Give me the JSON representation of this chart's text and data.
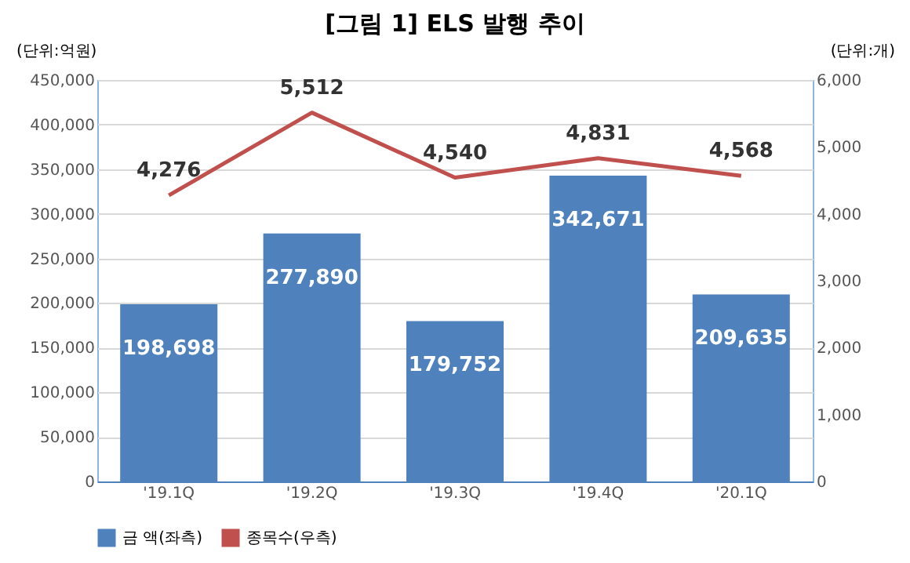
{
  "chart_data": {
    "type": "bar",
    "title": "[그림 1] ELS 발행 추이",
    "ylabel": "(단위:억원)",
    "y2label": "(단위:개)",
    "categories": [
      "'19.1Q",
      "'19.2Q",
      "'19.3Q",
      "'19.4Q",
      "'20.1Q"
    ],
    "series": [
      {
        "name": "금 액(좌측)",
        "color": "#4f81bd",
        "values": [
          198698,
          277890,
          179752,
          342671,
          209635
        ],
        "value_labels": [
          "198,698",
          "277,890",
          "179,752",
          "342,671",
          "209,635"
        ]
      },
      {
        "name": "종목수(우측)",
        "color": "#c0504d",
        "type": "line",
        "axis": "y2",
        "values": [
          4276,
          5512,
          4540,
          4831,
          4568
        ],
        "value_labels": [
          "4,276",
          "5,512",
          "4,540",
          "4,831",
          "4,568"
        ]
      }
    ],
    "ylim": [
      0,
      450000
    ],
    "yticks": [
      0,
      {
        "value": 50000,
        "label": "50,000"
      },
      {
        "value": 100000,
        "label": "100,000"
      },
      {
        "value": 150000,
        "label": "150,000"
      },
      {
        "value": 200000,
        "label": "200,000"
      },
      {
        "value": 250000,
        "label": "250,000"
      },
      {
        "value": 300000,
        "label": "300,000"
      },
      {
        "value": 350000,
        "label": "350,000"
      },
      {
        "value": 400000,
        "label": "400,000"
      },
      {
        "value": 450000,
        "label": "450,000"
      }
    ],
    "y2lim": [
      0,
      6000
    ],
    "y2ticks": [
      0,
      {
        "value": 1000,
        "label": "1,000"
      },
      {
        "value": 2000,
        "label": "2,000"
      },
      {
        "value": 3000,
        "label": "3,000"
      },
      {
        "value": 4000,
        "label": "4,000"
      },
      {
        "value": 5000,
        "label": "5,000"
      },
      {
        "value": 6000,
        "label": "6,000"
      }
    ],
    "grid": "y",
    "legend": "bottom",
    "marker": "none",
    "line_style": "solid"
  }
}
